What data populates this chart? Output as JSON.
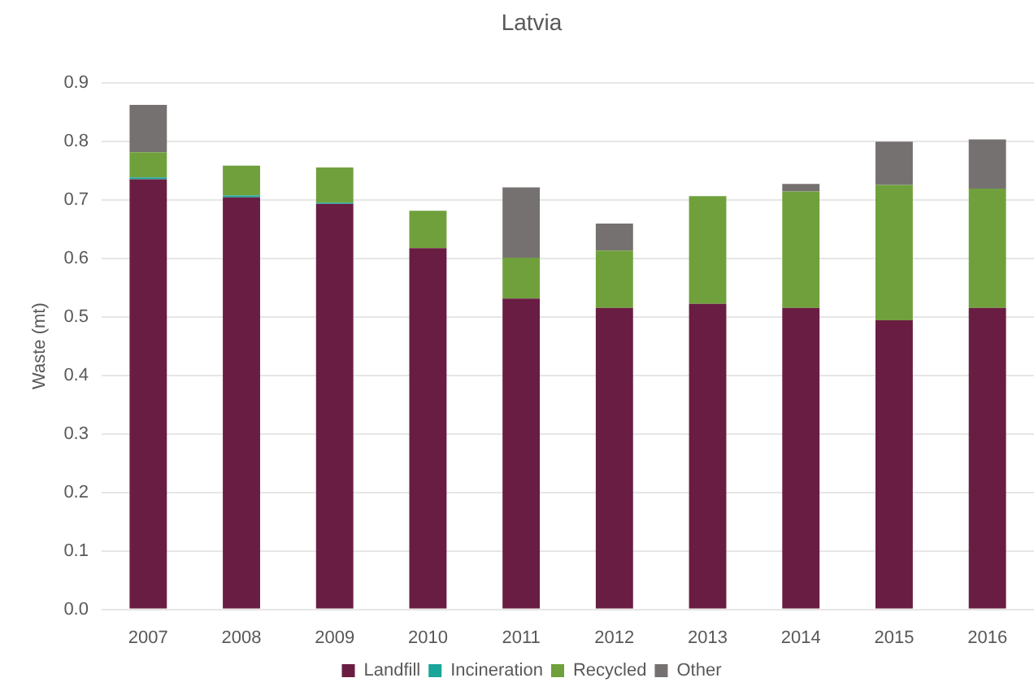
{
  "chart_data": {
    "type": "bar",
    "title": "Latvia",
    "ylabel": "Waste (mt)",
    "categories": [
      "2007",
      "2008",
      "2009",
      "2010",
      "2011",
      "2012",
      "2013",
      "2014",
      "2015",
      "2016"
    ],
    "series": [
      {
        "name": "Landfill",
        "color": "#6a1d42",
        "values": [
          0.735,
          0.704,
          0.693,
          0.617,
          0.531,
          0.515,
          0.522,
          0.515,
          0.494,
          0.515
        ]
      },
      {
        "name": "Incineration",
        "color": "#1aa59a",
        "values": [
          0.003,
          0.003,
          0.002,
          0,
          0,
          0,
          0,
          0,
          0,
          0
        ]
      },
      {
        "name": "Recycled",
        "color": "#70a03c",
        "values": [
          0.043,
          0.051,
          0.06,
          0.064,
          0.07,
          0.098,
          0.184,
          0.199,
          0.231,
          0.204
        ]
      },
      {
        "name": "Other",
        "color": "#767171",
        "values": [
          0.081,
          0,
          0,
          0,
          0.12,
          0.046,
          0,
          0.013,
          0.074,
          0.084
        ]
      }
    ],
    "stacked": true,
    "ylim": [
      0,
      0.9
    ],
    "yticks": [
      {
        "value": 0,
        "label": "0.0"
      },
      0.1,
      0.2,
      0.3,
      0.4,
      0.5,
      0.6,
      0.7,
      0.8,
      0.9
    ],
    "grid": "y",
    "legend": "bottom"
  }
}
